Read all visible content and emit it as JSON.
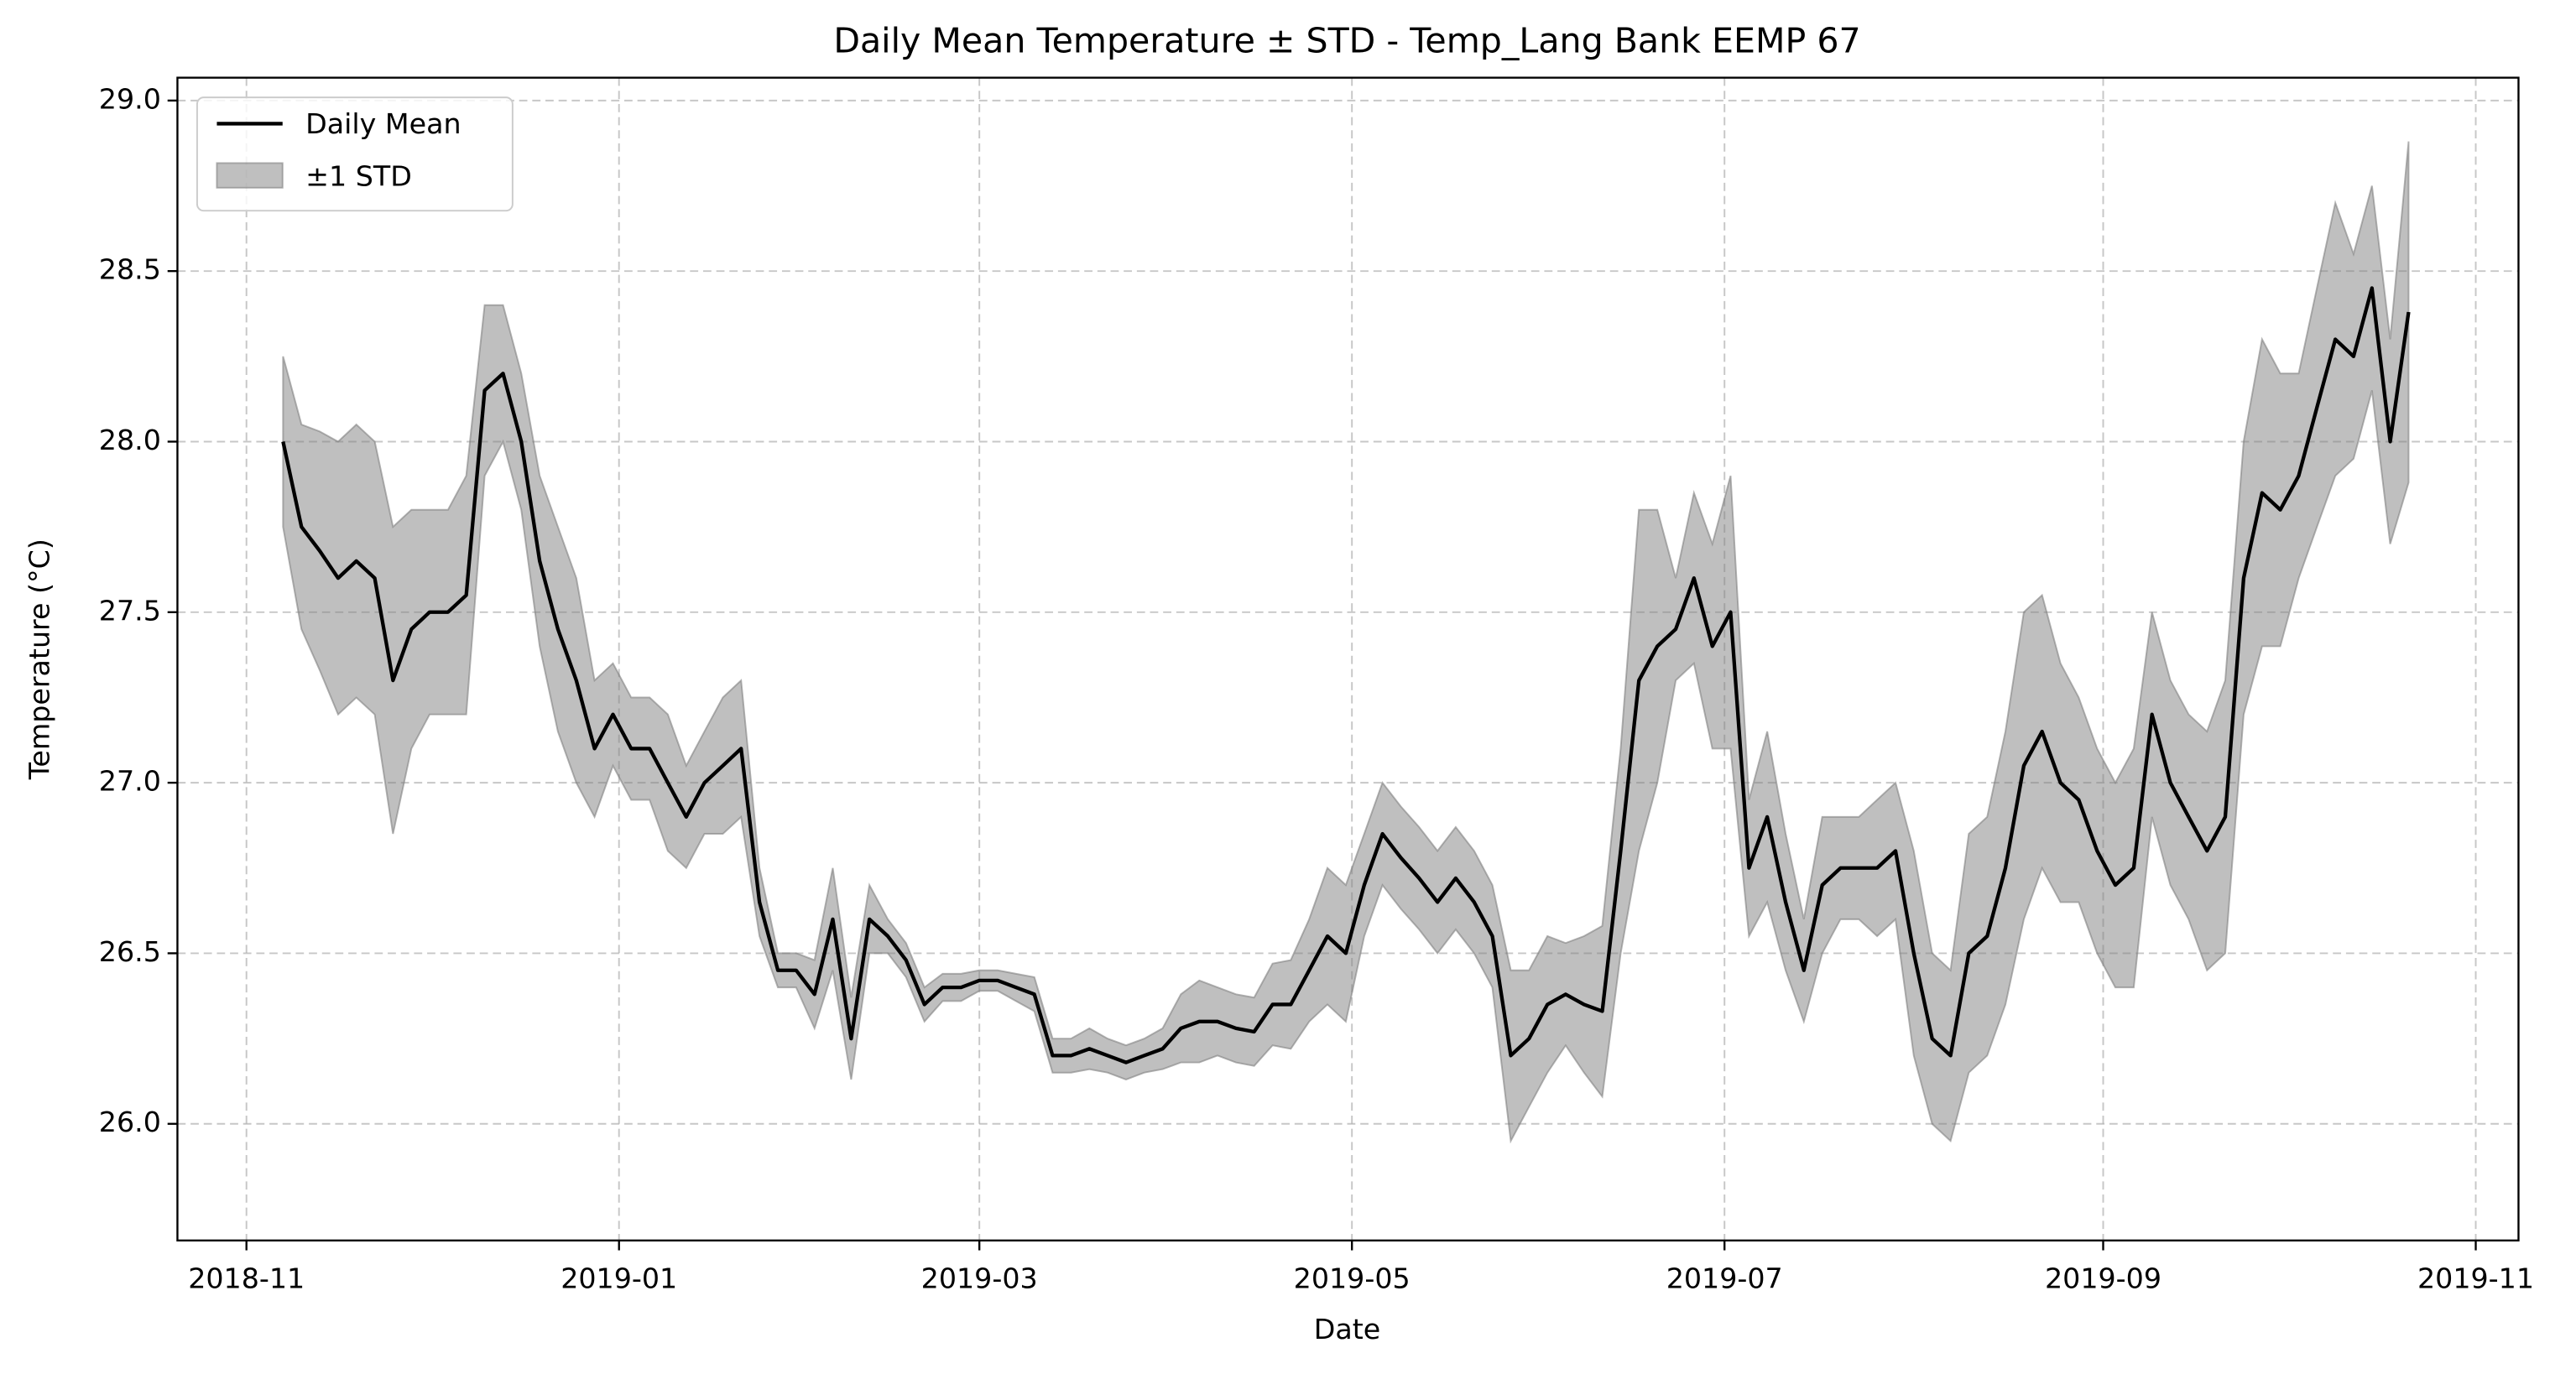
{
  "chart_data": {
    "type": "line",
    "title": "Daily Mean Temperature ± STD - Temp_Lang Bank EEMP 67",
    "x_label": "Date",
    "y_label": "Temperature (°C)",
    "x": [
      17842,
      17845,
      17848,
      17851,
      17854,
      17857,
      17860,
      17863,
      17866,
      17869,
      17872,
      17875,
      17878,
      17881,
      17884,
      17887,
      17890,
      17893,
      17896,
      17899,
      17902,
      17905,
      17908,
      17911,
      17914,
      17917,
      17920,
      17923,
      17926,
      17929,
      17932,
      17935,
      17938,
      17941,
      17944,
      17947,
      17950,
      17953,
      17956,
      17959,
      17962,
      17965,
      17968,
      17971,
      17974,
      17977,
      17980,
      17983,
      17986,
      17989,
      17992,
      17995,
      17998,
      18001,
      18004,
      18007,
      18010,
      18013,
      18016,
      18019,
      18022,
      18025,
      18028,
      18031,
      18034,
      18037,
      18040,
      18043,
      18046,
      18049,
      18052,
      18055,
      18058,
      18061,
      18064,
      18067,
      18070,
      18073,
      18076,
      18079,
      18082,
      18085,
      18088,
      18091,
      18094,
      18097,
      18100,
      18103,
      18106,
      18109,
      18112,
      18115,
      18118,
      18121,
      18124,
      18127,
      18130,
      18133,
      18136,
      18139,
      18142,
      18145,
      18148,
      18151,
      18154,
      18157,
      18160,
      18163,
      18166,
      18169,
      18172,
      18175,
      18178,
      18181,
      18184,
      18187,
      18190
    ],
    "series": [
      {
        "name": "Daily Mean",
        "color": "#000000",
        "values": [
          28.0,
          27.75,
          27.68,
          27.6,
          27.65,
          27.6,
          27.3,
          27.45,
          27.5,
          27.5,
          27.55,
          28.15,
          28.2,
          28.0,
          27.65,
          27.45,
          27.3,
          27.1,
          27.2,
          27.1,
          27.1,
          27.0,
          26.9,
          27.0,
          27.05,
          27.1,
          26.65,
          26.45,
          26.45,
          26.38,
          26.6,
          26.25,
          26.6,
          26.55,
          26.48,
          26.35,
          26.4,
          26.4,
          26.42,
          26.42,
          26.4,
          26.38,
          26.2,
          26.2,
          26.22,
          26.2,
          26.18,
          26.2,
          26.22,
          26.28,
          26.3,
          26.3,
          26.28,
          26.27,
          26.35,
          26.35,
          26.45,
          26.55,
          26.5,
          26.7,
          26.85,
          26.78,
          26.72,
          26.65,
          26.72,
          26.65,
          26.55,
          26.2,
          26.25,
          26.35,
          26.38,
          26.35,
          26.33,
          26.8,
          27.3,
          27.4,
          27.45,
          27.6,
          27.4,
          27.5,
          26.75,
          26.9,
          26.65,
          26.45,
          26.7,
          26.75,
          26.75,
          26.75,
          26.8,
          26.5,
          26.25,
          26.2,
          26.5,
          26.55,
          26.75,
          27.05,
          27.15,
          27.0,
          26.95,
          26.8,
          26.7,
          26.75,
          27.2,
          27.0,
          26.9,
          26.8,
          26.9,
          27.6,
          27.85,
          27.8,
          27.9,
          28.1,
          28.3,
          28.25,
          28.45,
          28.0,
          28.38
        ]
      },
      {
        "name": "±1 STD",
        "color": "#808080",
        "values": [
          0.25,
          0.3,
          0.35,
          0.4,
          0.4,
          0.4,
          0.45,
          0.35,
          0.3,
          0.3,
          0.35,
          0.25,
          0.2,
          0.2,
          0.25,
          0.3,
          0.3,
          0.2,
          0.15,
          0.15,
          0.15,
          0.2,
          0.15,
          0.15,
          0.2,
          0.2,
          0.1,
          0.05,
          0.05,
          0.1,
          0.15,
          0.12,
          0.1,
          0.05,
          0.05,
          0.05,
          0.04,
          0.04,
          0.03,
          0.03,
          0.04,
          0.05,
          0.05,
          0.05,
          0.06,
          0.05,
          0.05,
          0.05,
          0.06,
          0.1,
          0.12,
          0.1,
          0.1,
          0.1,
          0.12,
          0.13,
          0.15,
          0.2,
          0.2,
          0.15,
          0.15,
          0.15,
          0.15,
          0.15,
          0.15,
          0.15,
          0.15,
          0.25,
          0.2,
          0.2,
          0.15,
          0.2,
          0.25,
          0.3,
          0.5,
          0.4,
          0.15,
          0.25,
          0.3,
          0.4,
          0.2,
          0.25,
          0.2,
          0.15,
          0.2,
          0.15,
          0.15,
          0.2,
          0.2,
          0.3,
          0.25,
          0.25,
          0.35,
          0.35,
          0.4,
          0.45,
          0.4,
          0.35,
          0.3,
          0.3,
          0.3,
          0.35,
          0.3,
          0.3,
          0.3,
          0.35,
          0.4,
          0.4,
          0.45,
          0.4,
          0.3,
          0.35,
          0.4,
          0.3,
          0.3,
          0.3,
          0.5
        ]
      }
    ],
    "xlim": [
      17824.7,
      18208
    ],
    "xticks": [
      {
        "value": 17836,
        "label": "2018-11"
      },
      {
        "value": 17897,
        "label": "2019-01"
      },
      {
        "value": 17956,
        "label": "2019-03"
      },
      {
        "value": 18017,
        "label": "2019-05"
      },
      {
        "value": 18078,
        "label": "2019-07"
      },
      {
        "value": 18140,
        "label": "2019-09"
      },
      {
        "value": 18201,
        "label": "2019-11"
      }
    ],
    "ylim": [
      25.658,
      29.067
    ],
    "yticks": [
      {
        "value": 26,
        "label": "26.0"
      },
      26.5,
      {
        "value": 27,
        "label": "27.0"
      },
      27.5,
      {
        "value": 28,
        "label": "28.0"
      },
      28.5,
      {
        "value": 29,
        "label": "29.0"
      }
    ],
    "grid": true,
    "legend": "upper left"
  }
}
